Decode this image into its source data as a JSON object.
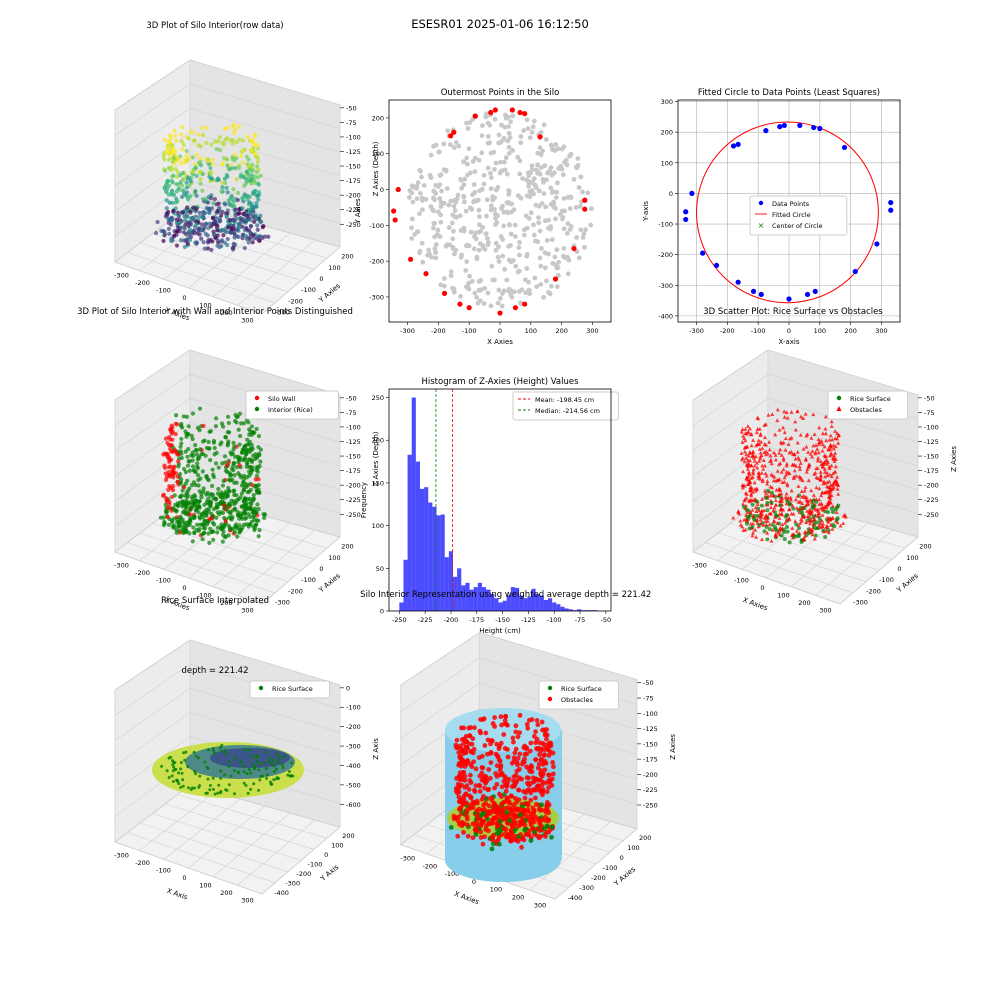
{
  "figure": {
    "title": "ESESR01 2025-01-06 16:12:50"
  },
  "colors": {
    "wall_red": "#ff0000",
    "rice_green": "#008000",
    "gray_points": "#c8c8c8",
    "blue_points": "#0000ff",
    "hist_blue": "#0000ff",
    "mean_line": "#ff0000",
    "median_line": "#008000",
    "cylinder": "#87ceeb"
  },
  "chart_data": [
    {
      "id": "p1",
      "type": "scatter",
      "title": "3D Plot of Silo Interior(row data)",
      "xlabel": "X Axies",
      "ylabel": "Y Axies",
      "zlabel": "Z Axies (Depth)",
      "xticks": [
        "-300",
        "-200",
        "-100",
        "0",
        "100",
        "200",
        "300"
      ],
      "yticks": [
        "200",
        "100",
        "0",
        "-100",
        "-200",
        "-300"
      ],
      "zticks": [
        "-50",
        "-75",
        "-100",
        "-125",
        "-150",
        "-175",
        "-200",
        "-225",
        "-250"
      ],
      "colormap": "viridis",
      "grid": true
    },
    {
      "id": "p2",
      "type": "scatter",
      "title": "Outermost Points in the Silo",
      "xlabel": "X Axies",
      "ylabel": "Y Axies",
      "xlim": [
        -360,
        360
      ],
      "ylim": [
        -370,
        250
      ],
      "xticks": [
        -300,
        -200,
        -100,
        0,
        100,
        200,
        300
      ],
      "yticks": [
        -300,
        -200,
        -100,
        0,
        100,
        200
      ],
      "interior_colour": "gray",
      "outer_colour": "red",
      "outer_points": [
        [
          -330,
          0
        ],
        [
          -345,
          -60
        ],
        [
          -340,
          -85
        ],
        [
          -290,
          -195
        ],
        [
          -240,
          -235
        ],
        [
          -180,
          -290
        ],
        [
          -130,
          -320
        ],
        [
          -100,
          -330
        ],
        [
          0,
          -345
        ],
        [
          50,
          -330
        ],
        [
          80,
          -320
        ],
        [
          180,
          -250
        ],
        [
          240,
          -165
        ],
        [
          275,
          -30
        ],
        [
          275,
          -55
        ],
        [
          -150,
          160
        ],
        [
          -160,
          150
        ],
        [
          -80,
          205
        ],
        [
          -30,
          215
        ],
        [
          -15,
          222
        ],
        [
          40,
          222
        ],
        [
          65,
          215
        ],
        [
          80,
          212
        ],
        [
          130,
          147
        ]
      ],
      "grid": false
    },
    {
      "id": "p3",
      "type": "scatter",
      "title": "Fitted Circle to Data Points (Least Squares)",
      "xlabel": "X-axis",
      "ylabel": "Y-axis",
      "xlim": [
        -360,
        360
      ],
      "ylim": [
        -420,
        305
      ],
      "xticks": [
        -300,
        -200,
        -100,
        0,
        100,
        200,
        300
      ],
      "yticks": [
        -400,
        -300,
        -200,
        -100,
        0,
        100,
        200,
        300
      ],
      "points": [
        [
          -335,
          -60
        ],
        [
          -335,
          -85
        ],
        [
          -315,
          0
        ],
        [
          -280,
          -195
        ],
        [
          -235,
          -235
        ],
        [
          -165,
          -290
        ],
        [
          -115,
          -320
        ],
        [
          -90,
          -330
        ],
        [
          0,
          -345
        ],
        [
          60,
          -330
        ],
        [
          85,
          -320
        ],
        [
          215,
          -255
        ],
        [
          285,
          -165
        ],
        [
          330,
          -30
        ],
        [
          330,
          -55
        ],
        [
          -180,
          155
        ],
        [
          -165,
          160
        ],
        [
          -75,
          205
        ],
        [
          -30,
          218
        ],
        [
          -15,
          222
        ],
        [
          35,
          222
        ],
        [
          80,
          215
        ],
        [
          100,
          212
        ],
        [
          180,
          150
        ]
      ],
      "circle": {
        "cx": -5,
        "cy": -62,
        "r": 295
      },
      "legend": [
        "Data Points",
        "Fitted Circle",
        "Center of Circle"
      ],
      "grid": true
    },
    {
      "id": "p4",
      "type": "scatter",
      "title": "3D Plot of Silo Interior with Wall and Interior Points Distinguished",
      "xlabel": "X Axies",
      "ylabel": "Y Axies",
      "zlabel": "Z Axies (Depth)",
      "xticks": [
        "-300",
        "-200",
        "-100",
        "0",
        "100",
        "200",
        "300"
      ],
      "yticks": [
        "200",
        "100",
        "0",
        "-100",
        "-200",
        "-300"
      ],
      "zticks": [
        "-50",
        "-75",
        "-100",
        "-125",
        "-150",
        "-175",
        "-200",
        "-225",
        "-250"
      ],
      "legend": [
        "Silo Wall",
        "Interior (Rice)"
      ],
      "grid": true
    },
    {
      "id": "p5",
      "type": "bar",
      "title": "Histogram of Z-Axies (Height) Values",
      "xlabel": "Height (cm)",
      "ylabel": "Frequency",
      "xlim": [
        -260,
        -45
      ],
      "ylim": [
        0,
        260
      ],
      "xticks": [
        -250,
        -225,
        -200,
        -175,
        -150,
        -125,
        -100,
        -75,
        -50
      ],
      "yticks": [
        0,
        50,
        100,
        150,
        200,
        250
      ],
      "bin_start": -250,
      "bin_width": 4,
      "values": [
        10,
        60,
        183,
        250,
        175,
        143,
        145,
        127,
        122,
        112,
        113,
        63,
        70,
        40,
        50,
        30,
        33,
        25,
        28,
        33,
        28,
        25,
        20,
        15,
        10,
        12,
        18,
        28,
        27,
        18,
        15,
        17,
        26,
        20,
        18,
        13,
        15,
        10,
        8,
        5,
        3,
        2,
        1,
        2,
        1,
        1,
        1,
        1,
        0,
        0
      ],
      "mean": -198.45,
      "median": -214.56,
      "legend": [
        "Mean: -198.45 cm",
        "Median: -214.56 cm"
      ],
      "grid": false
    },
    {
      "id": "p6",
      "type": "scatter",
      "title": "3D Scatter Plot: Rice Surface vs Obstacles",
      "xlabel": "X Axies",
      "ylabel": "Y Axies",
      "zlabel": "Z Axies",
      "xticks": [
        "-300",
        "-200",
        "-100",
        "0",
        "100",
        "200",
        "300"
      ],
      "yticks": [
        "200",
        "100",
        "0",
        "-100",
        "-200",
        "-300"
      ],
      "zticks": [
        "-50",
        "-75",
        "-100",
        "-125",
        "-150",
        "-175",
        "-200",
        "-225",
        "-250"
      ],
      "legend": [
        "Rice Surface",
        "Obstacles"
      ],
      "grid": true
    },
    {
      "id": "p7",
      "type": "area",
      "title": "Rice Surface Interpolated",
      "subtitle": "depth = 221.42",
      "xlabel": "X Axis",
      "ylabel": "Y Axis",
      "zlabel": "Z Axis",
      "xticks": [
        "-300",
        "-200",
        "-100",
        "0",
        "100",
        "200",
        "300"
      ],
      "yticks": [
        "200",
        "100",
        "0",
        "-100",
        "-200",
        "-300",
        "-400"
      ],
      "zticks": [
        "0",
        "-100",
        "-200",
        "-300",
        "-400",
        "-500",
        "-600"
      ],
      "legend": [
        "Rice Surface"
      ],
      "grid": true
    },
    {
      "id": "p8",
      "type": "scatter",
      "title": "Silo Interior Representation using weighted average depth = 221.42",
      "xlabel": "X Axies",
      "ylabel": "Y Axies",
      "zlabel": "Z Axies",
      "xticks": [
        "-300",
        "-200",
        "-100",
        "0",
        "100",
        "200",
        "300"
      ],
      "yticks": [
        "200",
        "100",
        "0",
        "-100",
        "-200",
        "-300",
        "-400"
      ],
      "zticks": [
        "-50",
        "-75",
        "-100",
        "-125",
        "-150",
        "-175",
        "-200",
        "-225",
        "-250"
      ],
      "legend": [
        "Rice Surface",
        "Obstacles"
      ],
      "grid": true
    }
  ]
}
